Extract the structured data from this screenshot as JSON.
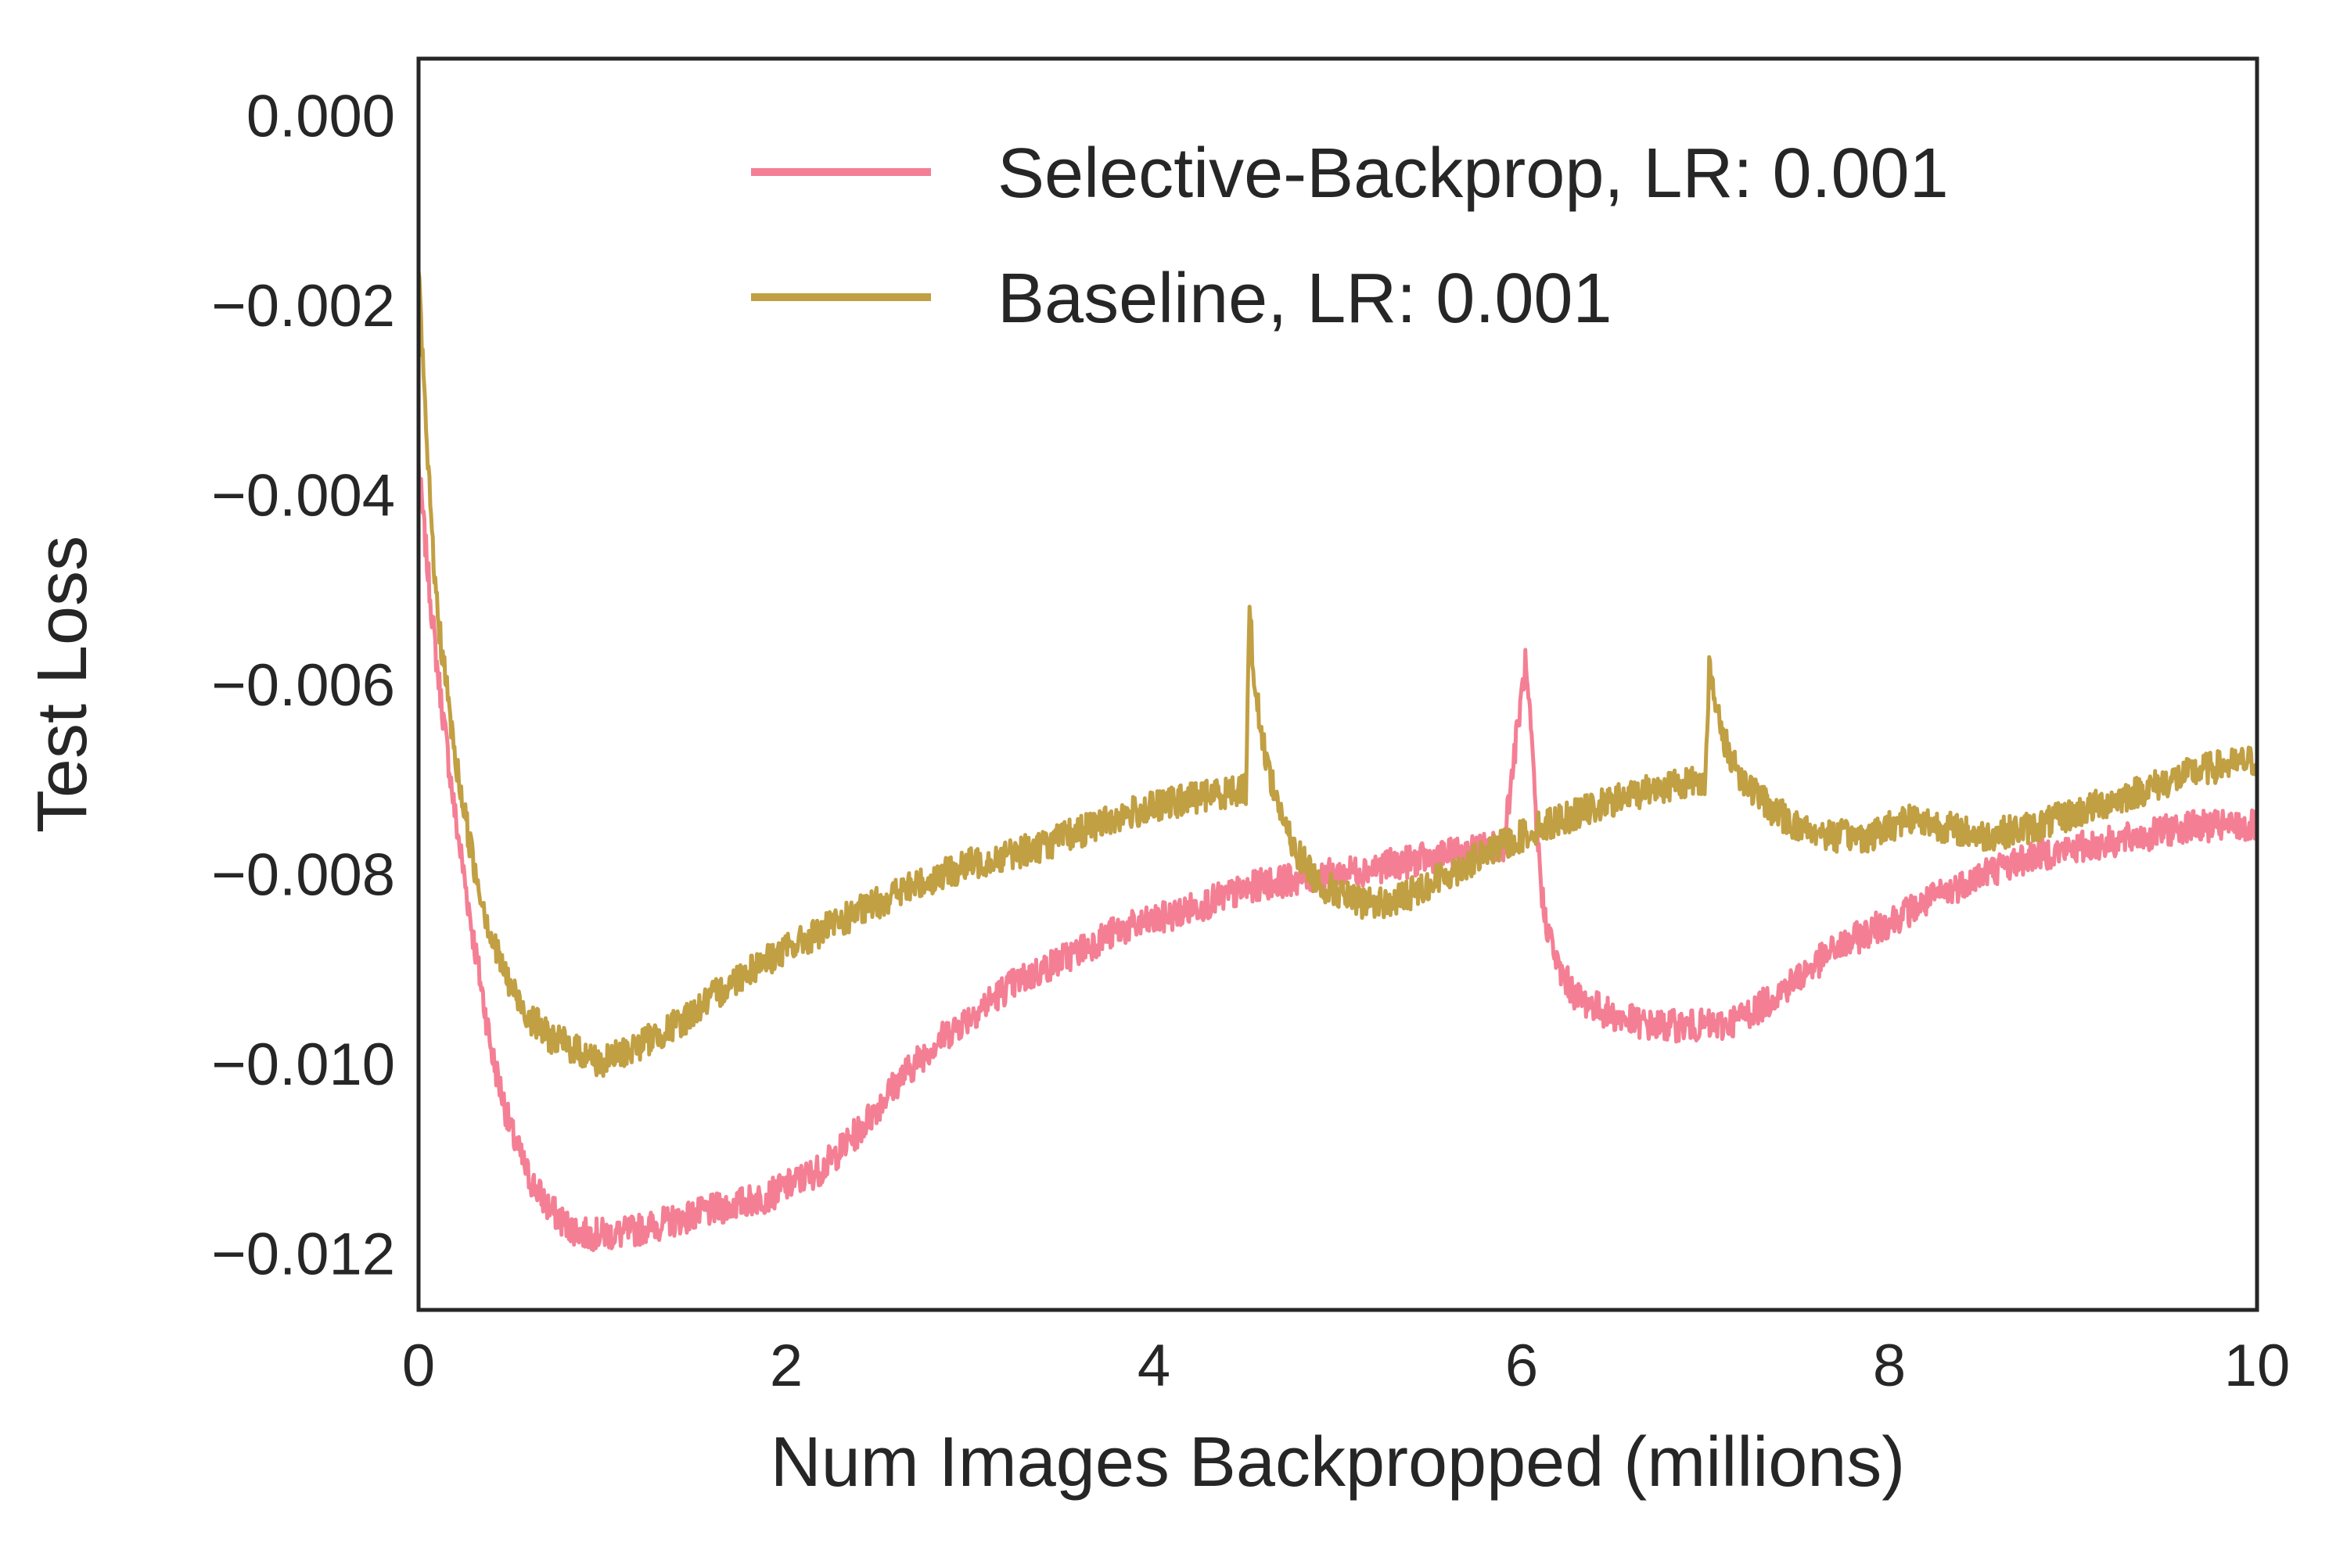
{
  "chart_data": {
    "type": "line",
    "title": "",
    "xlabel": "Num Images Backpropped (millions)",
    "ylabel": "Test Loss",
    "xlim": [
      0,
      10
    ],
    "ylim": [
      -0.0126,
      0.0006
    ],
    "xticks": [
      0,
      2,
      4,
      6,
      8,
      10
    ],
    "xtick_labels": [
      "0",
      "2",
      "4",
      "6",
      "8",
      "10"
    ],
    "yticks": [
      0.0,
      -0.002,
      -0.004,
      -0.006,
      -0.008,
      -0.01,
      -0.012
    ],
    "ytick_labels": [
      "0.000",
      "−0.002",
      "−0.004",
      "−0.006",
      "−0.008",
      "−0.010",
      "−0.012"
    ],
    "grid": false,
    "legend": "top-right",
    "series": [
      {
        "name": "Selective-Backprop, LR: 0.001",
        "color": "#f47f94",
        "x": [
          0.0,
          0.05,
          0.1,
          0.15,
          0.2,
          0.3,
          0.4,
          0.5,
          0.6,
          0.7,
          0.8,
          0.9,
          1.0,
          1.1,
          1.3,
          1.5,
          1.7,
          1.9,
          2.0,
          2.2,
          2.4,
          2.6,
          2.8,
          3.0,
          3.2,
          3.5,
          3.8,
          4.0,
          4.3,
          4.6,
          5.0,
          5.3,
          5.6,
          5.9,
          6.02,
          6.05,
          6.08,
          6.12,
          6.2,
          6.3,
          6.5,
          6.7,
          6.9,
          7.1,
          7.3,
          7.5,
          7.7,
          7.9,
          8.2,
          8.5,
          8.8,
          9.1,
          9.4,
          9.6,
          9.8,
          10.0
        ],
        "y": [
          -0.0037,
          -0.0048,
          -0.0058,
          -0.0066,
          -0.0074,
          -0.0087,
          -0.0099,
          -0.0107,
          -0.0112,
          -0.0115,
          -0.0117,
          -0.0118,
          -0.0118,
          -0.0118,
          -0.0117,
          -0.0116,
          -0.0115,
          -0.0114,
          -0.0113,
          -0.0111,
          -0.0107,
          -0.0102,
          -0.0098,
          -0.0095,
          -0.0092,
          -0.0089,
          -0.0086,
          -0.0085,
          -0.0083,
          -0.0081,
          -0.008,
          -0.0079,
          -0.0078,
          -0.0077,
          -0.0058,
          -0.0065,
          -0.0075,
          -0.0084,
          -0.009,
          -0.0093,
          -0.0095,
          -0.0096,
          -0.0096,
          -0.0096,
          -0.0094,
          -0.0091,
          -0.0088,
          -0.0086,
          -0.0083,
          -0.008,
          -0.0078,
          -0.0077,
          -0.0076,
          -0.0075,
          -0.0075,
          -0.0075
        ]
      },
      {
        "name": "Baseline, LR: 0.001",
        "color": "#c19f43",
        "x": [
          0.0,
          0.05,
          0.1,
          0.15,
          0.2,
          0.3,
          0.4,
          0.5,
          0.6,
          0.7,
          0.8,
          0.9,
          1.0,
          1.1,
          1.2,
          1.4,
          1.6,
          1.8,
          2.0,
          2.3,
          2.6,
          3.0,
          3.4,
          3.8,
          4.2,
          4.5,
          4.52,
          4.54,
          4.58,
          4.65,
          4.75,
          4.9,
          5.1,
          5.3,
          5.5,
          5.8,
          6.1,
          6.4,
          6.7,
          7.0,
          7.02,
          7.04,
          7.1,
          7.2,
          7.35,
          7.5,
          7.7,
          7.9,
          8.1,
          8.3,
          8.5,
          8.8,
          9.1,
          9.4,
          9.7,
          10.0
        ],
        "y": [
          -0.0017,
          -0.0037,
          -0.0052,
          -0.006,
          -0.0068,
          -0.0079,
          -0.0087,
          -0.0092,
          -0.0095,
          -0.0097,
          -0.0098,
          -0.0099,
          -0.01,
          -0.0099,
          -0.0098,
          -0.0096,
          -0.0093,
          -0.009,
          -0.0088,
          -0.0085,
          -0.0082,
          -0.0079,
          -0.0077,
          -0.0074,
          -0.0072,
          -0.0071,
          -0.0052,
          -0.0058,
          -0.0065,
          -0.0071,
          -0.0077,
          -0.0081,
          -0.0083,
          -0.0083,
          -0.0081,
          -0.0078,
          -0.0075,
          -0.0073,
          -0.0071,
          -0.007,
          -0.0058,
          -0.0061,
          -0.0066,
          -0.007,
          -0.0073,
          -0.0075,
          -0.0076,
          -0.0076,
          -0.0074,
          -0.0075,
          -0.0076,
          -0.0075,
          -0.0073,
          -0.0071,
          -0.0069,
          -0.0068
        ]
      }
    ]
  }
}
